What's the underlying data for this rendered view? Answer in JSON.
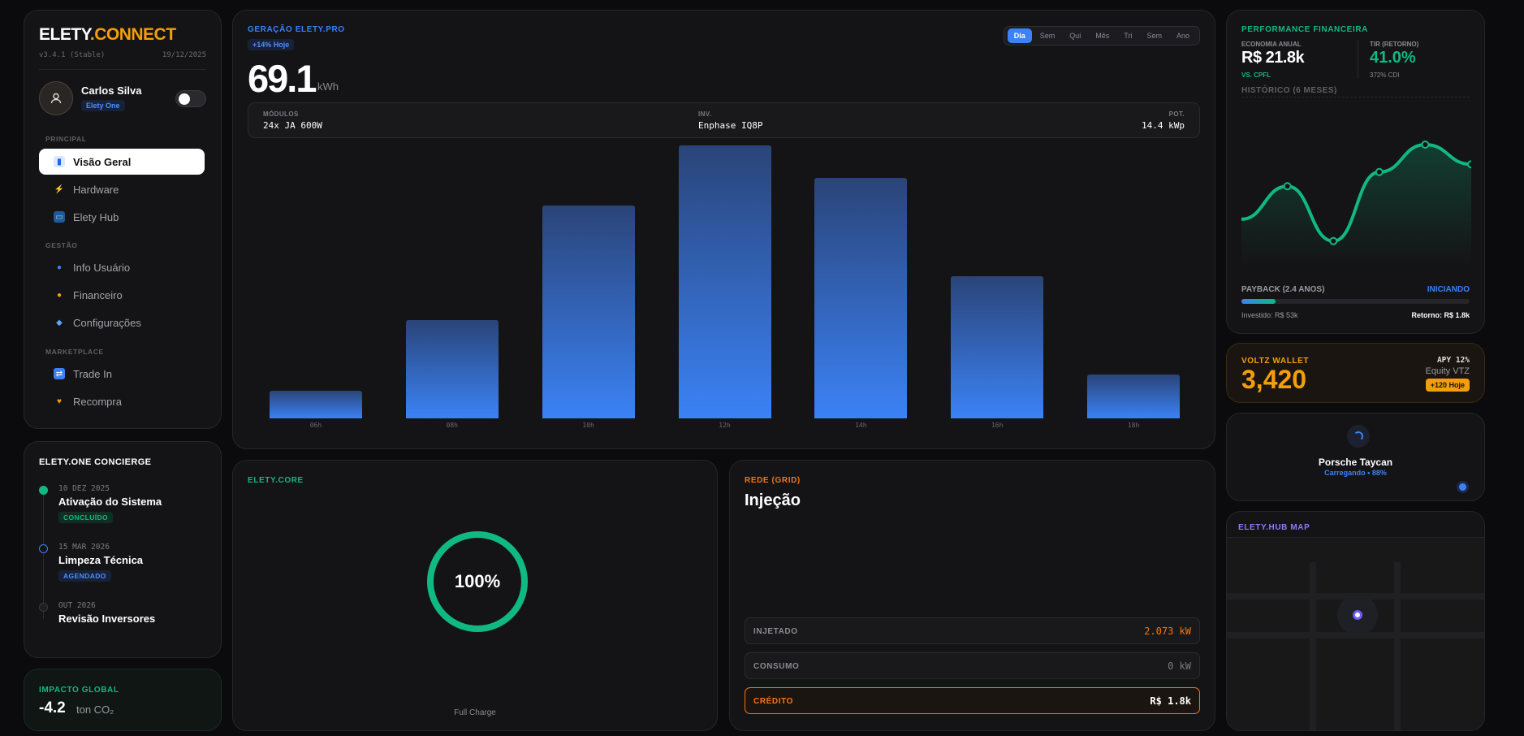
{
  "app": {
    "logo_a": "ELETY",
    "logo_b": ".CONNECT",
    "version": "v3.4.1 (Stable)",
    "date": "19/12/2025"
  },
  "user": {
    "name": "Carlos Silva",
    "plan": "Elety One"
  },
  "nav": {
    "sections": [
      "PRINCIPAL",
      "GESTÃO",
      "MARKETPLACE"
    ],
    "items": [
      {
        "label": "Visão Geral",
        "icon": "chart-icon"
      },
      {
        "label": "Hardware",
        "icon": "bolt-icon"
      },
      {
        "label": "Elety Hub",
        "icon": "monitor-icon"
      },
      {
        "label": "Info Usuário",
        "icon": "user-icon"
      },
      {
        "label": "Financeiro",
        "icon": "moneybag-icon"
      },
      {
        "label": "Configurações",
        "icon": "shield-icon"
      },
      {
        "label": "Trade In",
        "icon": "swap-icon"
      },
      {
        "label": "Recompra",
        "icon": "heart-icon"
      }
    ]
  },
  "concierge": {
    "title": "ELETY.ONE CONCIERGE",
    "events": [
      {
        "date": "10 DEZ 2025",
        "name": "Ativação do Sistema",
        "badge": "CONCLUÍDO",
        "color": "#10b981"
      },
      {
        "date": "15 MAR 2026",
        "name": "Limpeza Técnica",
        "badge": "AGENDADO",
        "color": "#3b82f6"
      },
      {
        "date": "OUT 2026",
        "name": "Revisão Inversores",
        "badge": "",
        "color": "#3a3a3e"
      }
    ]
  },
  "impact": {
    "title": "IMPACTO GLOBAL",
    "value": "-4.2",
    "unit": "ton CO₂"
  },
  "generation": {
    "title": "GERAÇÃO ELETY.PRO",
    "badge": "+14% Hoje",
    "value": "69.1",
    "unit": "kWh",
    "tabs": [
      "Dia",
      "Sem",
      "Qui",
      "Mês",
      "Tri",
      "Sem",
      "Ano"
    ],
    "active_tab": 0,
    "specs": [
      {
        "key": "MÓDULOS",
        "value": "24x JA 600W"
      },
      {
        "key": "INV.",
        "value": "Enphase IQ8P"
      },
      {
        "key": "POT.",
        "value": "14.4 kWp"
      }
    ]
  },
  "chart_data": {
    "type": "bar",
    "categories": [
      "06h",
      "08h",
      "10h",
      "12h",
      "14h",
      "16h",
      "18h"
    ],
    "values": [
      10,
      36,
      78,
      100,
      88,
      52,
      16
    ],
    "ylim": [
      0,
      100
    ],
    "grid": false,
    "xlabel": "",
    "ylabel": ""
  },
  "core": {
    "title": "ELETY.CORE",
    "percent": "100%",
    "level": 1.0,
    "caption": "Full Charge"
  },
  "grid": {
    "title": "REDE (GRID)",
    "mode": "Injeção",
    "rows": [
      {
        "key": "INJETADO",
        "value": "2.073 kW",
        "color": "#f97316"
      },
      {
        "key": "CONSUMO",
        "value": "0 kW",
        "color": "#7a7a82"
      },
      {
        "key": "CRÉDITO",
        "value": "R$ 1.8k",
        "color": "#ffffff"
      }
    ]
  },
  "finance": {
    "title": "PERFORMANCE FINANCEIRA",
    "eco_label": "ECONOMIA ANUAL",
    "eco_value": "R$ 21.8k",
    "eco_sub": "VS. CPFL",
    "tir_label": "TIR (RETORNO)",
    "tir_value": "41.0%",
    "tir_sub": "372% CDI",
    "history_label": "HISTÓRICO (6 MESES)",
    "history": [
      32,
      62,
      12,
      75,
      100,
      82
    ],
    "payback_label": "PAYBACK (2.4 ANOS)",
    "payback_status": "INICIANDO",
    "payback_progress": 0.15,
    "invested": "Investido: R$ 53k",
    "return": "Retorno: R$ 1.8k"
  },
  "wallet": {
    "title": "VOLTZ WALLET",
    "value": "3,420",
    "apy": "APY 12%",
    "equity": "Equity VTZ",
    "badge": "+120 Hoje"
  },
  "car": {
    "name": "Porsche Taycan",
    "status": "Carregando • 88%"
  },
  "map": {
    "title": "ELETY.HUB MAP"
  }
}
